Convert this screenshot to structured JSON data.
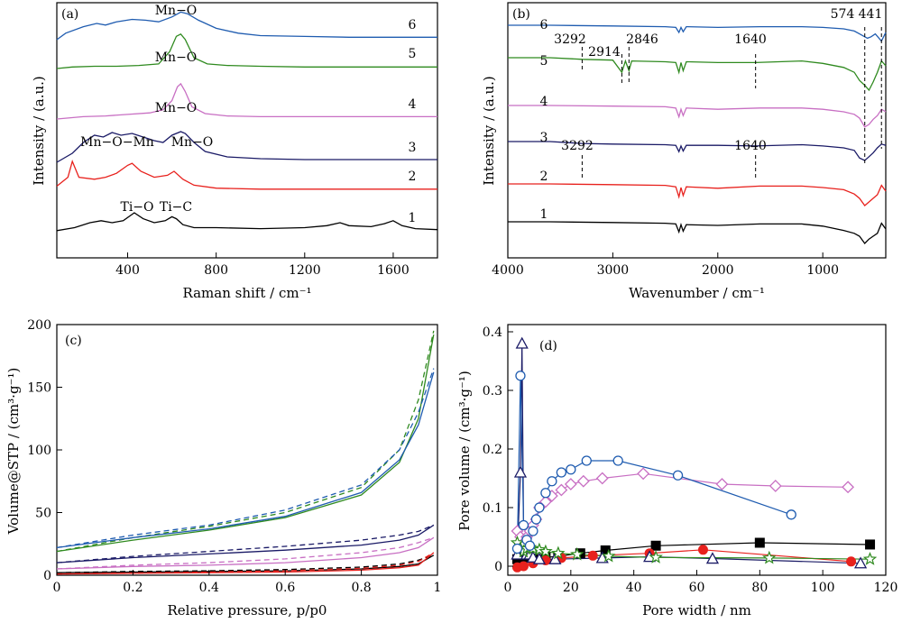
{
  "chart_data": [
    {
      "panel": "(a)",
      "type": "line",
      "xlabel": "Raman shift / cm⁻¹",
      "ylabel": "Intensity / (a.u.)",
      "xlim": [
        80,
        1800
      ],
      "xticks": [
        400,
        800,
        1200,
        1600
      ],
      "series_labels": [
        "1",
        "2",
        "3",
        "4",
        "5",
        "6"
      ],
      "series_colors": [
        "#000000",
        "#e8211d",
        "#1a1a66",
        "#c86fc3",
        "#2f8a1f",
        "#1f5cb0"
      ],
      "series": [
        {
          "x": [
            80,
            160,
            230,
            280,
            330,
            380,
            430,
            470,
            520,
            570,
            600,
            620,
            650,
            700,
            800,
            1000,
            1200,
            1300,
            1360,
            1400,
            1500,
            1560,
            1600,
            1640,
            1700,
            1800
          ],
          "y": [
            0.02,
            0.05,
            0.1,
            0.12,
            0.1,
            0.12,
            0.2,
            0.14,
            0.1,
            0.12,
            0.16,
            0.14,
            0.08,
            0.05,
            0.05,
            0.04,
            0.05,
            0.07,
            0.1,
            0.07,
            0.06,
            0.09,
            0.12,
            0.07,
            0.04,
            0.03
          ]
        },
        {
          "x": [
            80,
            130,
            150,
            180,
            250,
            300,
            350,
            400,
            420,
            460,
            520,
            580,
            610,
            650,
            700,
            800,
            1000,
            1200,
            1400,
            1600,
            1800
          ],
          "y": [
            0.05,
            0.14,
            0.3,
            0.14,
            0.12,
            0.14,
            0.18,
            0.26,
            0.28,
            0.2,
            0.14,
            0.16,
            0.2,
            0.12,
            0.06,
            0.03,
            0.02,
            0.02,
            0.02,
            0.02,
            0.02
          ]
        },
        {
          "x": [
            80,
            150,
            200,
            250,
            290,
            330,
            370,
            420,
            470,
            520,
            560,
            600,
            640,
            660,
            700,
            750,
            850,
            1000,
            1200,
            1400,
            1600,
            1800
          ],
          "y": [
            0.0,
            0.1,
            0.22,
            0.3,
            0.28,
            0.33,
            0.3,
            0.32,
            0.28,
            0.24,
            0.22,
            0.3,
            0.34,
            0.32,
            0.22,
            0.12,
            0.06,
            0.04,
            0.03,
            0.03,
            0.03,
            0.03
          ]
        },
        {
          "x": [
            80,
            200,
            300,
            400,
            500,
            560,
            600,
            625,
            640,
            660,
            690,
            750,
            850,
            1000,
            1200,
            1400,
            1600,
            1800
          ],
          "y": [
            0.0,
            0.03,
            0.04,
            0.06,
            0.08,
            0.12,
            0.24,
            0.42,
            0.46,
            0.36,
            0.16,
            0.07,
            0.04,
            0.03,
            0.03,
            0.03,
            0.03,
            0.03
          ]
        },
        {
          "x": [
            80,
            150,
            250,
            350,
            450,
            540,
            590,
            620,
            640,
            660,
            700,
            760,
            850,
            1000,
            1200,
            1400,
            1600,
            1800
          ],
          "y": [
            0.0,
            0.02,
            0.03,
            0.03,
            0.04,
            0.06,
            0.22,
            0.42,
            0.45,
            0.38,
            0.14,
            0.06,
            0.04,
            0.03,
            0.02,
            0.02,
            0.02,
            0.02
          ]
        },
        {
          "x": [
            80,
            120,
            200,
            260,
            300,
            350,
            420,
            480,
            540,
            600,
            640,
            670,
            720,
            800,
            900,
            1000,
            1200,
            1400,
            1600,
            1800
          ],
          "y": [
            0.0,
            0.08,
            0.16,
            0.2,
            0.18,
            0.22,
            0.25,
            0.24,
            0.22,
            0.28,
            0.34,
            0.32,
            0.24,
            0.14,
            0.08,
            0.05,
            0.04,
            0.03,
            0.03,
            0.03
          ]
        }
      ],
      "annotations": [
        "Ti−O",
        "Ti−C",
        "Mn−O−Mn",
        "Mn−O",
        "Mn−O",
        "Mn−O",
        "Mn−O"
      ]
    },
    {
      "panel": "(b)",
      "type": "line",
      "xlabel": "Wavenumber / cm⁻¹",
      "ylabel": "Intensity / (a.u.)",
      "xlim": [
        4000,
        400
      ],
      "xticks": [
        4000,
        3000,
        2000,
        1000
      ],
      "series_labels": [
        "1",
        "2",
        "3",
        "4",
        "5",
        "6"
      ],
      "series_colors": [
        "#000000",
        "#e8211d",
        "#1a1a66",
        "#c86fc3",
        "#2f8a1f",
        "#1f5cb0"
      ],
      "series": [
        {
          "x": [
            4000,
            3600,
            3000,
            2500,
            2400,
            2370,
            2350,
            2330,
            2300,
            2000,
            1600,
            1200,
            1000,
            800,
            700,
            650,
            600,
            560,
            520,
            480,
            440,
            400
          ],
          "y": [
            0.3,
            0.3,
            0.29,
            0.28,
            0.27,
            0.16,
            0.26,
            0.17,
            0.26,
            0.25,
            0.27,
            0.27,
            0.24,
            0.18,
            0.14,
            0.1,
            0.0,
            0.06,
            0.1,
            0.14,
            0.28,
            0.2
          ]
        },
        {
          "x": [
            4000,
            3600,
            3000,
            2500,
            2400,
            2370,
            2350,
            2330,
            2300,
            2000,
            1600,
            1200,
            1000,
            800,
            700,
            650,
            600,
            560,
            520,
            480,
            440,
            400
          ],
          "y": [
            0.3,
            0.3,
            0.29,
            0.28,
            0.26,
            0.12,
            0.25,
            0.14,
            0.26,
            0.24,
            0.27,
            0.27,
            0.25,
            0.22,
            0.16,
            0.1,
            0.0,
            0.05,
            0.1,
            0.15,
            0.28,
            0.2
          ]
        },
        {
          "x": [
            4000,
            3600,
            3300,
            3000,
            2500,
            2400,
            2370,
            2350,
            2330,
            2300,
            2000,
            1640,
            1200,
            1000,
            800,
            700,
            650,
            600,
            560,
            520,
            480,
            440,
            400
          ],
          "y": [
            0.4,
            0.4,
            0.37,
            0.36,
            0.35,
            0.34,
            0.24,
            0.33,
            0.25,
            0.34,
            0.34,
            0.33,
            0.35,
            0.33,
            0.3,
            0.26,
            0.14,
            0.1,
            0.16,
            0.22,
            0.3,
            0.36,
            0.34
          ]
        },
        {
          "x": [
            4000,
            3600,
            3000,
            2500,
            2400,
            2370,
            2350,
            2330,
            2300,
            2000,
            1600,
            1200,
            1000,
            800,
            700,
            650,
            600,
            560,
            520,
            480,
            440,
            400
          ],
          "y": [
            0.4,
            0.4,
            0.39,
            0.38,
            0.36,
            0.22,
            0.34,
            0.24,
            0.36,
            0.34,
            0.36,
            0.36,
            0.34,
            0.3,
            0.26,
            0.2,
            0.06,
            0.1,
            0.18,
            0.24,
            0.34,
            0.3
          ]
        },
        {
          "x": [
            4000,
            3600,
            3292,
            3000,
            2914,
            2880,
            2846,
            2820,
            2500,
            2400,
            2370,
            2350,
            2330,
            2300,
            2000,
            1640,
            1200,
            1000,
            800,
            700,
            650,
            600,
            560,
            520,
            480,
            440,
            400
          ],
          "y": [
            0.4,
            0.4,
            0.38,
            0.37,
            0.22,
            0.36,
            0.24,
            0.36,
            0.35,
            0.34,
            0.22,
            0.34,
            0.24,
            0.35,
            0.34,
            0.34,
            0.36,
            0.33,
            0.28,
            0.22,
            0.12,
            0.06,
            0.0,
            0.1,
            0.22,
            0.36,
            0.3
          ]
        },
        {
          "x": [
            4000,
            3600,
            3000,
            2500,
            2400,
            2370,
            2350,
            2330,
            2300,
            2000,
            1600,
            1200,
            1000,
            800,
            700,
            650,
            600,
            574,
            540,
            500,
            441,
            400
          ],
          "y": [
            0.4,
            0.4,
            0.39,
            0.38,
            0.37,
            0.3,
            0.37,
            0.31,
            0.38,
            0.37,
            0.38,
            0.38,
            0.37,
            0.35,
            0.32,
            0.28,
            0.24,
            0.22,
            0.24,
            0.28,
            0.18,
            0.3
          ]
        }
      ],
      "annotations": [
        "3292",
        "2914",
        "2846",
        "1640",
        "574",
        "441",
        "3292",
        "1640"
      ]
    },
    {
      "panel": "(c)",
      "type": "line",
      "xlabel": "Relative pressure, p/p0",
      "ylabel": "Volume@STP / (cm³·g⁻¹)",
      "xlim": [
        0,
        1.0
      ],
      "ylim": [
        0,
        200
      ],
      "xticks": [
        0,
        0.2,
        0.4,
        0.6,
        0.8,
        1.0
      ],
      "yticks": [
        0,
        50,
        100,
        150,
        200
      ],
      "series_colors": [
        "#000000",
        "#e8211d",
        "#1a1a66",
        "#c86fc3",
        "#2f8a1f",
        "#1f5cb0"
      ],
      "series": [
        {
          "x": [
            0.0,
            0.2,
            0.4,
            0.6,
            0.8,
            0.9,
            0.95,
            0.99
          ],
          "ads": [
            2,
            2.5,
            3,
            3.5,
            5,
            7,
            9,
            16
          ],
          "des": [
            2,
            3,
            3.5,
            4.5,
            6.5,
            9,
            12,
            16
          ]
        },
        {
          "x": [
            0.0,
            0.2,
            0.4,
            0.6,
            0.8,
            0.9,
            0.95,
            0.99
          ],
          "ads": [
            1,
            1.5,
            2,
            2.5,
            4,
            6,
            8,
            18
          ],
          "des": [
            1,
            1.8,
            2.5,
            3.5,
            5.5,
            8,
            11,
            18
          ]
        },
        {
          "x": [
            0.0,
            0.2,
            0.4,
            0.6,
            0.8,
            0.9,
            0.95,
            0.99
          ],
          "ads": [
            10,
            14,
            17,
            20,
            24,
            28,
            32,
            40
          ],
          "des": [
            10,
            15,
            19,
            23,
            28,
            32,
            35,
            40
          ]
        },
        {
          "x": [
            0.0,
            0.2,
            0.4,
            0.6,
            0.8,
            0.9,
            0.95,
            0.99
          ],
          "ads": [
            5,
            7,
            8,
            10,
            14,
            18,
            22,
            30
          ],
          "des": [
            5,
            8,
            10,
            13,
            18,
            22,
            26,
            30
          ]
        },
        {
          "x": [
            0.0,
            0.2,
            0.4,
            0.6,
            0.8,
            0.9,
            0.95,
            0.99
          ],
          "ads": [
            19,
            28,
            36,
            46,
            64,
            90,
            125,
            192
          ],
          "des": [
            19,
            30,
            39,
            50,
            70,
            100,
            140,
            195
          ]
        },
        {
          "x": [
            0.0,
            0.2,
            0.4,
            0.6,
            0.8,
            0.9,
            0.95,
            0.99
          ],
          "ads": [
            22,
            30,
            37,
            47,
            66,
            92,
            120,
            162
          ],
          "des": [
            22,
            32,
            40,
            52,
            72,
            100,
            130,
            165
          ]
        }
      ]
    },
    {
      "panel": "(d)",
      "type": "scatter",
      "xlabel": "Pore width / nm",
      "ylabel": "Pore volume / (cm³·g⁻¹)",
      "xlim": [
        0,
        120
      ],
      "ylim": [
        0,
        0.4
      ],
      "xticks": [
        0,
        20,
        40,
        60,
        80,
        100,
        120
      ],
      "yticks": [
        0,
        0.1,
        0.2,
        0.3,
        0.4
      ],
      "series": [
        {
          "marker": "square-filled",
          "color": "#000000",
          "x": [
            3,
            5,
            8,
            12,
            16,
            23,
            31,
            47,
            80,
            115
          ],
          "y": [
            0.012,
            0.014,
            0.013,
            0.015,
            0.017,
            0.022,
            0.027,
            0.035,
            0.04,
            0.037
          ]
        },
        {
          "marker": "circle-filled",
          "color": "#e8211d",
          "x": [
            3,
            5,
            8,
            12,
            17,
            27,
            45,
            62,
            109
          ],
          "y": [
            -0.002,
            0.0,
            0.005,
            0.01,
            0.014,
            0.018,
            0.022,
            0.028,
            0.008
          ]
        },
        {
          "marker": "triangle-open",
          "color": "#1a1a66",
          "x": [
            3,
            4,
            4.5,
            5,
            5.5,
            6,
            7,
            8,
            10,
            15,
            30,
            45,
            65,
            112
          ],
          "y": [
            0.02,
            0.16,
            0.38,
            0.06,
            0.03,
            0.02,
            0.02,
            0.015,
            0.012,
            0.012,
            0.014,
            0.016,
            0.013,
            0.005
          ]
        },
        {
          "marker": "diamond-open",
          "color": "#c86fc3",
          "x": [
            3,
            4,
            5,
            6,
            7,
            8,
            9,
            10,
            12,
            14,
            17,
            20,
            24,
            30,
            43,
            68,
            85,
            108
          ],
          "y": [
            0.06,
            0.05,
            0.04,
            0.05,
            0.06,
            0.07,
            0.08,
            0.1,
            0.11,
            0.12,
            0.13,
            0.14,
            0.145,
            0.15,
            0.158,
            0.14,
            0.137,
            0.135
          ]
        },
        {
          "marker": "star-open",
          "color": "#2f8a1f",
          "x": [
            3,
            4,
            5,
            6,
            7,
            8,
            10,
            12,
            16,
            22,
            32,
            47,
            83,
            115
          ],
          "y": [
            0.04,
            0.03,
            0.025,
            0.03,
            0.032,
            0.03,
            0.028,
            0.025,
            0.022,
            0.02,
            0.017,
            0.015,
            0.014,
            0.012
          ]
        },
        {
          "marker": "circle-open",
          "color": "#1f5cb0",
          "x": [
            3,
            4,
            5,
            6,
            7,
            8,
            9,
            10,
            12,
            14,
            17,
            20,
            25,
            35,
            54,
            90
          ],
          "y": [
            0.03,
            0.325,
            0.07,
            0.045,
            0.035,
            0.06,
            0.08,
            0.1,
            0.125,
            0.145,
            0.16,
            0.165,
            0.18,
            0.18,
            0.155,
            0.088
          ]
        }
      ]
    }
  ]
}
